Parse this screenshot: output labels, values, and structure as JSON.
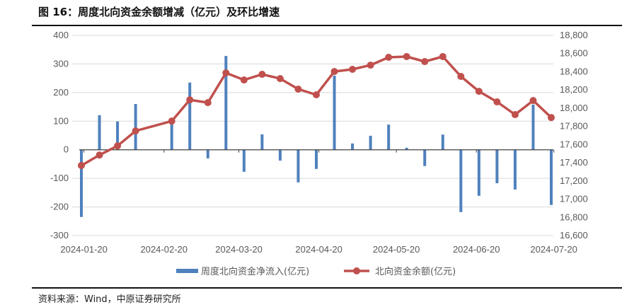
{
  "title": "图 16：周度北向资金余额增减（亿元）及环比增速",
  "source": "资料来源：Wind，中原证券研究所",
  "chart_data": {
    "type": "bar+line",
    "title": "图 16：周度北向资金余额增减（亿元）及环比增速",
    "x": [
      "2024-01-19",
      "2024-01-26",
      "2024-02-02",
      "2024-02-09",
      "2024-02-23",
      "2024-03-01",
      "2024-03-08",
      "2024-03-15",
      "2024-03-22",
      "2024-03-29",
      "2024-04-05",
      "2024-04-12",
      "2024-04-19",
      "2024-04-26",
      "2024-05-03",
      "2024-05-10",
      "2024-05-17",
      "2024-05-24",
      "2024-05-31",
      "2024-06-07",
      "2024-06-14",
      "2024-06-21",
      "2024-06-28",
      "2024-07-05",
      "2024-07-12",
      "2024-07-19"
    ],
    "x_ticks": [
      "2024-01-20",
      "2024-02-20",
      "2024-03-20",
      "2024-04-20",
      "2024-05-20",
      "2024-06-20",
      "2024-07-20"
    ],
    "y_left": {
      "range": [
        -300,
        400
      ],
      "ticks": [
        "400",
        "300",
        "200",
        "100",
        "0",
        "-100",
        "-200",
        "-300"
      ]
    },
    "y_right": {
      "range": [
        16600,
        18800
      ],
      "ticks": [
        "18,800",
        "18,600",
        "18,400",
        "18,200",
        "18,000",
        "17,800",
        "17,600",
        "17,400",
        "17,200",
        "17,000",
        "16,800",
        "16,600"
      ]
    },
    "grid": true,
    "legend": "bottom",
    "series": [
      {
        "name": "周度北向资金净流入(亿元)",
        "type": "bar",
        "axis": "left",
        "color": "#4f81bd",
        "values": [
          -235,
          121,
          99,
          160,
          100,
          235,
          -30,
          328,
          -77,
          54,
          -38,
          -114,
          -67,
          259,
          22,
          49,
          88,
          7,
          -57,
          53,
          -218,
          -161,
          -117,
          -139,
          158,
          -193
        ]
      },
      {
        "name": "北向资金余额(亿元)",
        "type": "line",
        "axis": "right",
        "color": "#c0504d",
        "values": [
          17370,
          17485,
          17586,
          17750,
          17858,
          18092,
          18061,
          18388,
          18310,
          18372,
          18325,
          18209,
          18147,
          18403,
          18427,
          18473,
          18559,
          18567,
          18512,
          18567,
          18349,
          18185,
          18069,
          17929,
          18084,
          17897
        ]
      }
    ]
  }
}
